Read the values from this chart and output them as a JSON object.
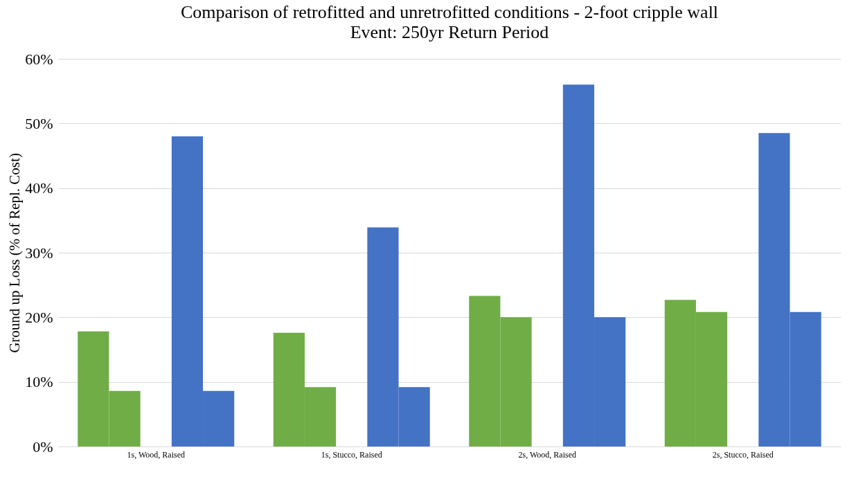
{
  "chart_data": {
    "type": "bar",
    "title": "Comparison of retrofitted and unretrofitted conditions - 2-foot cripple wall",
    "subtitle": "Event: 250yr Return Period",
    "ylabel": "Ground up Loss (% of Repl. Cost)",
    "categories": [
      "1s, Wood, Raised",
      "1s, Stucco, Raised",
      "2s, Wood, Raised",
      "2s, Stucco, Raised"
    ],
    "series": [
      {
        "color": "#70ad47",
        "values": [
          17.8,
          17.6,
          23.3,
          22.7
        ]
      },
      {
        "color": "#70ad47",
        "values": [
          8.6,
          9.2,
          20.0,
          20.8
        ]
      },
      {
        "color": "#4472c4",
        "values": [
          48.0,
          33.9,
          56.0,
          48.5
        ]
      },
      {
        "color": "#4472c4",
        "values": [
          8.6,
          9.2,
          20.0,
          20.8
        ]
      }
    ],
    "ylim": [
      0,
      60
    ],
    "yticks": [
      {
        "value": 0,
        "label": "0%"
      },
      {
        "value": 10,
        "label": "10%"
      },
      {
        "value": 20,
        "label": "20%"
      },
      {
        "value": 30,
        "label": "30%"
      },
      {
        "value": 40,
        "label": "40%"
      },
      {
        "value": 50,
        "label": "50%"
      },
      {
        "value": 60,
        "label": "60%"
      }
    ],
    "grid": "y"
  }
}
